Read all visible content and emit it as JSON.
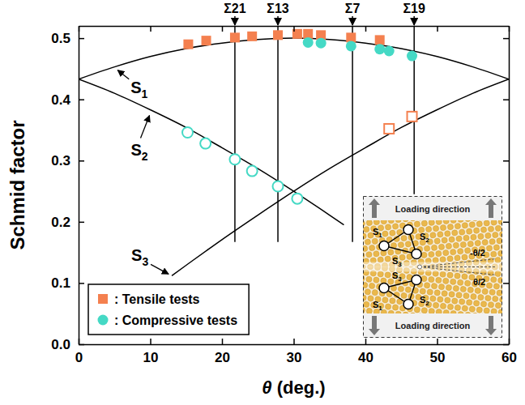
{
  "chart_data": {
    "type": "scatter",
    "x_label": "θ (deg.)",
    "y_label": "Schmid factor",
    "xlim": [
      0,
      60
    ],
    "xticks": [
      0,
      10,
      20,
      30,
      40,
      50,
      60
    ],
    "ylim": [
      0,
      0.52
    ],
    "yticks": [
      {
        "value": 0,
        "label": "0.0"
      },
      0.1,
      0.2,
      0.3,
      0.4,
      0.5
    ],
    "grid": false,
    "legend": "lower left",
    "series": [
      {
        "name": "S1",
        "type": "line",
        "color": "#000000",
        "x": [
          0,
          5,
          10,
          15,
          20,
          25,
          30,
          35,
          40,
          45,
          50,
          55,
          60
        ],
        "values": [
          0.433,
          0.453,
          0.47,
          0.483,
          0.492,
          0.498,
          0.5,
          0.498,
          0.492,
          0.483,
          0.47,
          0.453,
          0.433
        ]
      },
      {
        "name": "S2",
        "type": "line",
        "color": "#000000",
        "x": [
          0,
          5,
          10,
          15,
          20,
          25,
          30,
          35,
          37
        ],
        "values": [
          0.433,
          0.41,
          0.383,
          0.354,
          0.321,
          0.287,
          0.25,
          0.211,
          0.195
        ]
      },
      {
        "name": "S3",
        "type": "line",
        "color": "#000000",
        "x": [
          13,
          15,
          20,
          25,
          30,
          35,
          40,
          45,
          50,
          55,
          60
        ],
        "values": [
          0.112,
          0.129,
          0.171,
          0.211,
          0.25,
          0.287,
          0.321,
          0.354,
          0.383,
          0.41,
          0.433
        ]
      },
      {
        "name": ": Tensile tests",
        "type": "scatter",
        "marker": "square",
        "color": "#f4804f",
        "x": [
          15.3,
          17.8,
          21.8,
          24.2,
          27.8,
          30.5,
          32.0,
          33.8,
          38.0,
          42.0
        ],
        "values": [
          0.49,
          0.496,
          0.501,
          0.503,
          0.505,
          0.507,
          0.507,
          0.505,
          0.501,
          0.497
        ]
      },
      {
        "type": "scatter",
        "marker": "open-square",
        "color": "#f4804f",
        "x": [
          43.3,
          46.5
        ],
        "values": [
          0.352,
          0.372
        ]
      },
      {
        "name": ": Compressive tests",
        "type": "scatter",
        "marker": "circle",
        "color": "#45d9c5",
        "x": [
          32.0,
          33.8,
          38.0,
          42.0,
          43.3,
          46.5
        ],
        "values": [
          0.493,
          0.492,
          0.487,
          0.482,
          0.479,
          0.471
        ]
      },
      {
        "type": "scatter",
        "marker": "open-circle",
        "color": "#45d9c5",
        "x": [
          15.2,
          17.7,
          21.8,
          24.2,
          27.8,
          30.5
        ],
        "values": [
          0.346,
          0.328,
          0.302,
          0.283,
          0.258,
          0.238
        ]
      }
    ],
    "annotations": [
      {
        "text": "Σ21",
        "x": 21.8,
        "y": 0.167
      },
      {
        "text": "Σ13",
        "x": 27.8,
        "y": 0.167
      },
      {
        "text": "Σ7",
        "x": 38.2,
        "y": 0.167
      },
      {
        "text": "Σ19",
        "x": 46.8,
        "y": 0.245
      }
    ],
    "inset": {
      "top_text": "Loading direction",
      "bottom_text": "Loading direction",
      "upper_labels": [
        "S1",
        "S2",
        "S3"
      ],
      "lower_labels": [
        "S1",
        "S2",
        "S3"
      ],
      "angle_labels": [
        "-θ/2",
        "θ/2"
      ]
    }
  }
}
